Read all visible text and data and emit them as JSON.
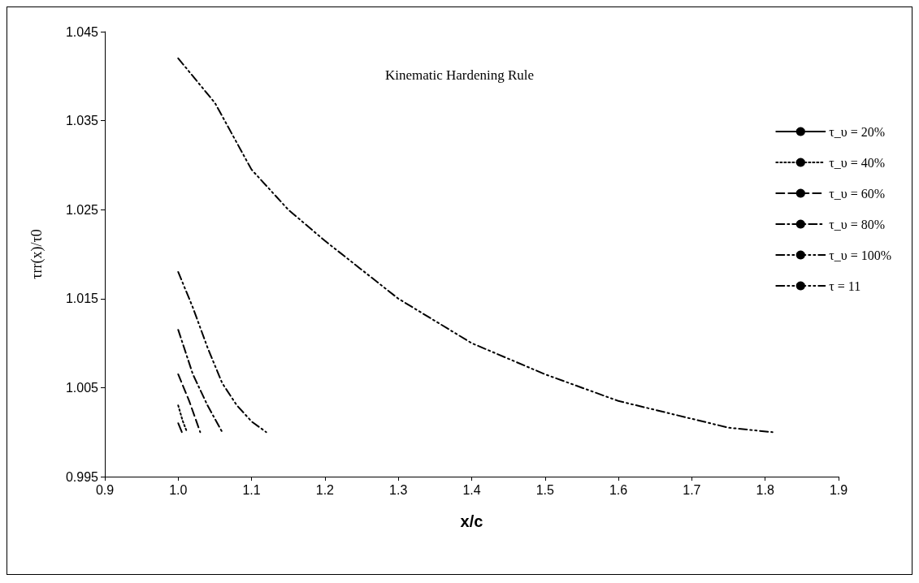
{
  "chart_data": {
    "type": "line",
    "title": "Kinematic Hardening Rule",
    "xlabel": "x/c",
    "ylabel": "τrr(x)/τ0",
    "xlim": [
      0.9,
      1.9
    ],
    "xticks": [
      0.9,
      {
        "value": 1,
        "label": "1.0"
      },
      1.1,
      1.2,
      1.3,
      1.4,
      1.5,
      1.6,
      1.7,
      1.8,
      1.9
    ],
    "ylim": [
      0.995,
      1.045
    ],
    "yticks": [
      0.995,
      1.005,
      1.015,
      1.025,
      1.035,
      1.045
    ],
    "grid": false,
    "legend": "right",
    "marker": "none",
    "series": [
      {
        "name": "τ_υ = 20%",
        "color": "#000000",
        "line_style": "solid",
        "x": [
          1.0,
          1.005
        ],
        "values": [
          1.001,
          1.0
        ]
      },
      {
        "name": "τ_υ = 40%",
        "color": "#000000",
        "line_style": "dotted",
        "x": [
          1.0,
          1.006,
          1.012
        ],
        "values": [
          1.003,
          1.0013,
          1.0
        ]
      },
      {
        "name": "τ_υ = 60%",
        "color": "#000000",
        "line_style": "dashed",
        "x": [
          1.0,
          1.015,
          1.03
        ],
        "values": [
          1.0065,
          1.0035,
          1.0
        ]
      },
      {
        "name": "τ_υ = 80%",
        "color": "#000000",
        "line_style": "dashdot",
        "x": [
          1.0,
          1.02,
          1.04,
          1.06
        ],
        "values": [
          1.0115,
          1.0065,
          1.003,
          1.0
        ]
      },
      {
        "name": "τ_υ = 100%",
        "color": "#000000",
        "line_style": "dashdotdot",
        "x": [
          1.0,
          1.02,
          1.04,
          1.06,
          1.08,
          1.1,
          1.12
        ],
        "values": [
          1.018,
          1.014,
          1.0095,
          1.0055,
          1.003,
          1.0012,
          1.0
        ]
      },
      {
        "name": "τ = 11",
        "color": "#000000",
        "line_style": "dashdotdot",
        "x": [
          1.0,
          1.05,
          1.1,
          1.15,
          1.2,
          1.3,
          1.4,
          1.5,
          1.6,
          1.7,
          1.75,
          1.81
        ],
        "values": [
          1.042,
          1.037,
          1.0295,
          1.025,
          1.0215,
          1.015,
          1.01,
          1.0065,
          1.0035,
          1.0015,
          1.0005,
          1.0
        ]
      }
    ]
  }
}
